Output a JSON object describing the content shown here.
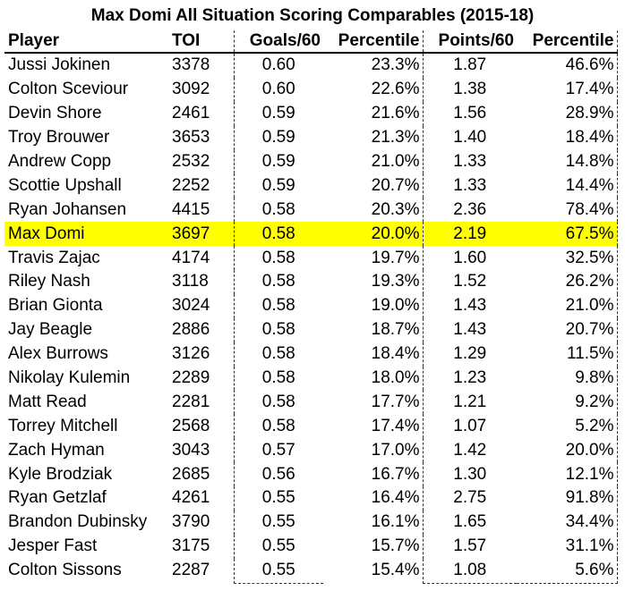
{
  "title": "Max Domi All Situation Scoring Comparables (2015-18)",
  "headers": {
    "player": "Player",
    "toi": "TOI",
    "goals60": "Goals/60",
    "goals_pct": "Percentile",
    "points60": "Points/60",
    "points_pct": "Percentile"
  },
  "highlight_color": "#ffff00",
  "rows": [
    {
      "player": "Jussi Jokinen",
      "toi": "3378",
      "g60": "0.60",
      "gp": "23.3%",
      "p60": "1.87",
      "pp": "46.6%"
    },
    {
      "player": "Colton Sceviour",
      "toi": "3092",
      "g60": "0.60",
      "gp": "22.6%",
      "p60": "1.38",
      "pp": "17.4%"
    },
    {
      "player": "Devin Shore",
      "toi": "2461",
      "g60": "0.59",
      "gp": "21.6%",
      "p60": "1.56",
      "pp": "28.9%"
    },
    {
      "player": "Troy Brouwer",
      "toi": "3653",
      "g60": "0.59",
      "gp": "21.3%",
      "p60": "1.40",
      "pp": "18.4%"
    },
    {
      "player": "Andrew Copp",
      "toi": "2532",
      "g60": "0.59",
      "gp": "21.0%",
      "p60": "1.33",
      "pp": "14.8%"
    },
    {
      "player": "Scottie Upshall",
      "toi": "2252",
      "g60": "0.59",
      "gp": "20.7%",
      "p60": "1.33",
      "pp": "14.4%"
    },
    {
      "player": "Ryan Johansen",
      "toi": "4415",
      "g60": "0.58",
      "gp": "20.3%",
      "p60": "2.36",
      "pp": "78.4%"
    },
    {
      "player": "Max Domi",
      "toi": "3697",
      "g60": "0.58",
      "gp": "20.0%",
      "p60": "2.19",
      "pp": "67.5%",
      "highlight": true
    },
    {
      "player": "Travis Zajac",
      "toi": "4174",
      "g60": "0.58",
      "gp": "19.7%",
      "p60": "1.60",
      "pp": "32.5%"
    },
    {
      "player": "Riley Nash",
      "toi": "3118",
      "g60": "0.58",
      "gp": "19.3%",
      "p60": "1.52",
      "pp": "26.2%"
    },
    {
      "player": "Brian Gionta",
      "toi": "3024",
      "g60": "0.58",
      "gp": "19.0%",
      "p60": "1.43",
      "pp": "21.0%"
    },
    {
      "player": "Jay Beagle",
      "toi": "2886",
      "g60": "0.58",
      "gp": "18.7%",
      "p60": "1.43",
      "pp": "20.7%"
    },
    {
      "player": "Alex Burrows",
      "toi": "3126",
      "g60": "0.58",
      "gp": "18.4%",
      "p60": "1.29",
      "pp": "11.5%"
    },
    {
      "player": "Nikolay Kulemin",
      "toi": "2289",
      "g60": "0.58",
      "gp": "18.0%",
      "p60": "1.23",
      "pp": "9.8%"
    },
    {
      "player": "Matt Read",
      "toi": "2281",
      "g60": "0.58",
      "gp": "17.7%",
      "p60": "1.21",
      "pp": "9.2%"
    },
    {
      "player": "Torrey Mitchell",
      "toi": "2568",
      "g60": "0.58",
      "gp": "17.4%",
      "p60": "1.07",
      "pp": "5.2%"
    },
    {
      "player": "Zach Hyman",
      "toi": "3043",
      "g60": "0.57",
      "gp": "17.0%",
      "p60": "1.42",
      "pp": "20.0%"
    },
    {
      "player": "Kyle Brodziak",
      "toi": "2685",
      "g60": "0.56",
      "gp": "16.7%",
      "p60": "1.30",
      "pp": "12.1%"
    },
    {
      "player": "Ryan Getzlaf",
      "toi": "4261",
      "g60": "0.55",
      "gp": "16.4%",
      "p60": "2.75",
      "pp": "91.8%"
    },
    {
      "player": "Brandon Dubinsky",
      "toi": "3790",
      "g60": "0.55",
      "gp": "16.1%",
      "p60": "1.65",
      "pp": "34.4%"
    },
    {
      "player": "Jesper Fast",
      "toi": "3175",
      "g60": "0.55",
      "gp": "15.7%",
      "p60": "1.57",
      "pp": "31.1%"
    },
    {
      "player": "Colton Sissons",
      "toi": "2287",
      "g60": "0.55",
      "gp": "15.4%",
      "p60": "1.08",
      "pp": "5.6%"
    }
  ]
}
